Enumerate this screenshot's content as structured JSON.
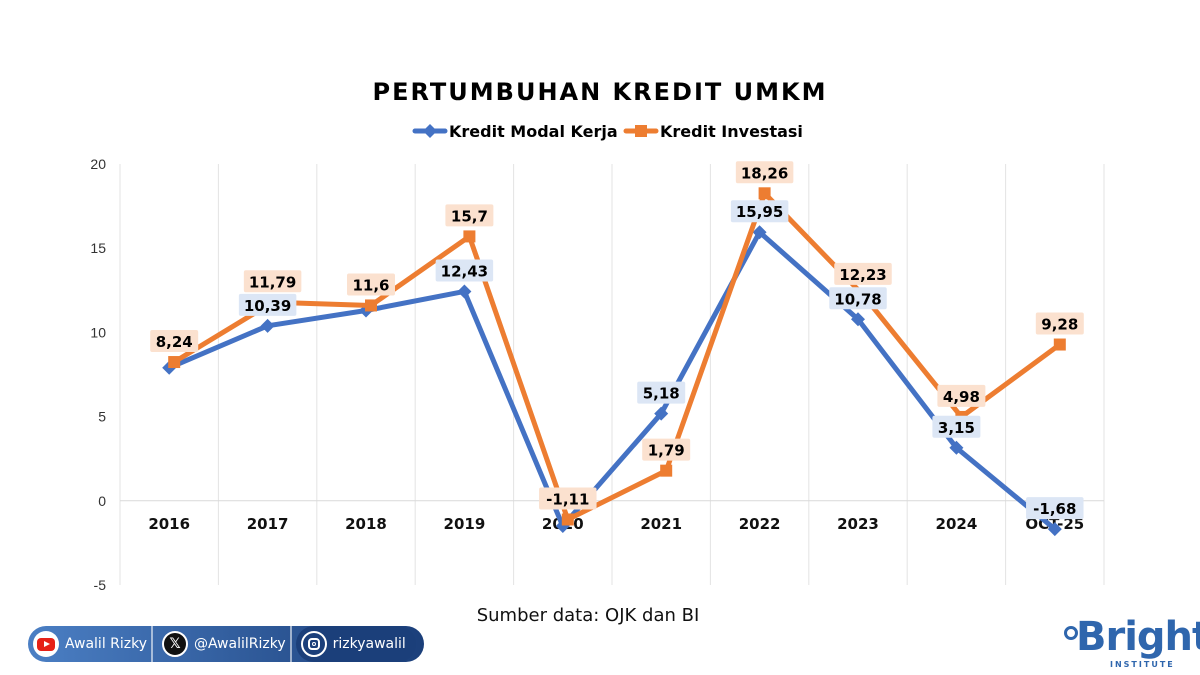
{
  "chart_data": {
    "type": "line",
    "title": "PERTUMBUHAN KREDIT UMKM",
    "categories": [
      "2016",
      "2017",
      "2018",
      "2019",
      "2020",
      "2021",
      "2022",
      "2023",
      "2024",
      "OCT-25"
    ],
    "series": [
      {
        "name": "Kredit Modal Kerja",
        "color": "#4472c4",
        "marker": "diamond",
        "values": [
          7.9,
          10.39,
          11.3,
          12.43,
          -1.5,
          5.18,
          15.95,
          10.78,
          3.15,
          -1.68
        ],
        "labels": [
          "",
          "10,39",
          "",
          "12,43",
          "",
          "5,18",
          "15,95",
          "10,78",
          "3,15",
          "-1,68"
        ]
      },
      {
        "name": "Kredit Investasi",
        "color": "#ed7d31",
        "marker": "square",
        "values": [
          8.24,
          11.79,
          11.6,
          15.7,
          -1.11,
          1.79,
          18.26,
          12.23,
          4.98,
          9.28
        ],
        "labels": [
          "8,24",
          "11,79",
          "11,6",
          "15,7",
          "-1,11",
          "1,79",
          "18,26",
          "12,23",
          "4,98",
          "9,28"
        ]
      }
    ],
    "ylim": [
      -5,
      20
    ],
    "yticks": [
      -5,
      0,
      5,
      10,
      15,
      20
    ],
    "xlabel": "",
    "ylabel": "",
    "grid": "vertical",
    "legend": "top-center",
    "source": "Sumber data: OJK dan BI"
  },
  "footer": {
    "youtube": "Awalil Rizky",
    "twitter": "@AwalilRizky",
    "instagram": "rizkyawalil",
    "youtube_icon": "youtube-icon",
    "twitter_icon": "x-icon",
    "instagram_icon": "instagram-icon"
  },
  "logo": {
    "name": "Bright",
    "sub": "INSTITUTE"
  }
}
